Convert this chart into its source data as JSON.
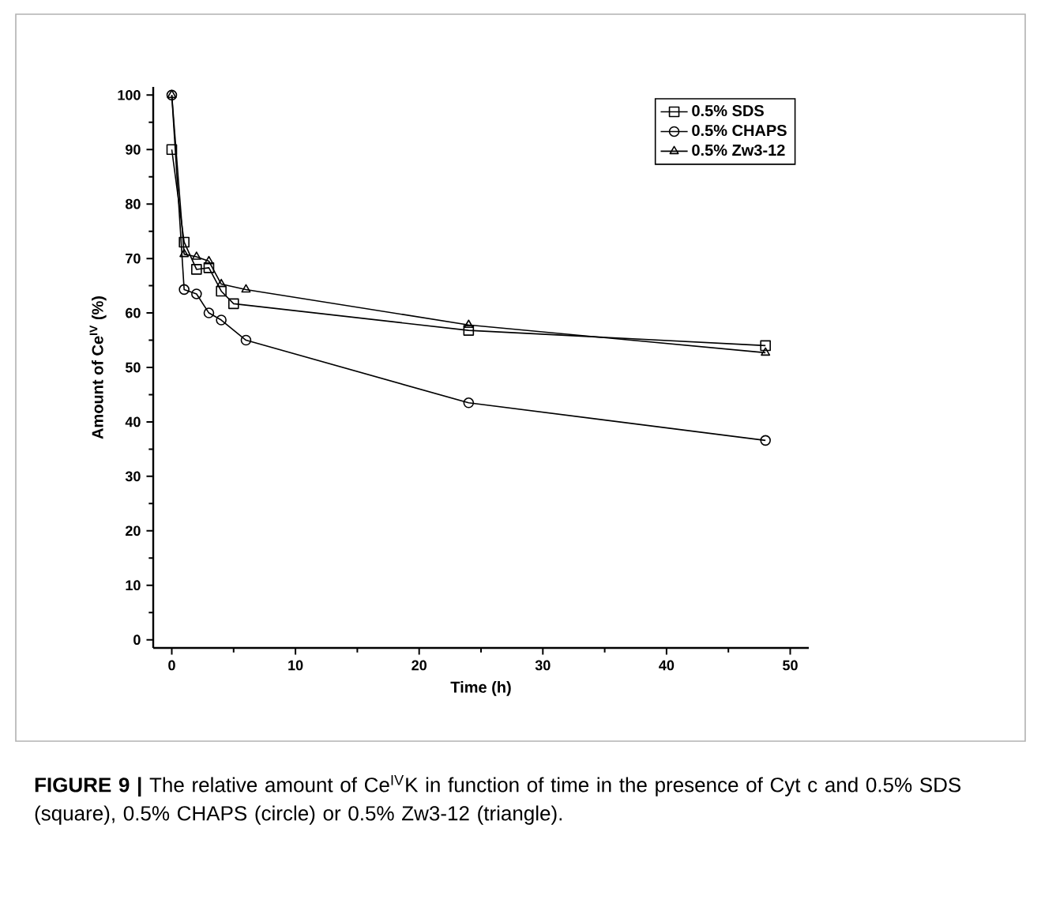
{
  "chart_data": {
    "type": "line",
    "xlabel": "Time (h)",
    "ylabel": "Amount of Ce$^{IV}$ (%)",
    "xlim": [
      -1.5,
      51.5
    ],
    "xticks": [
      0,
      10,
      20,
      30,
      40,
      50
    ],
    "ylim": [
      -1.5,
      101.5
    ],
    "yticks": [
      0,
      10,
      20,
      30,
      40,
      50,
      60,
      70,
      80,
      90,
      100
    ],
    "legend": "top right",
    "line_style": "solid",
    "series": [
      {
        "name": "0.5% SDS",
        "color": "#000000",
        "marker": "square",
        "x": [
          0,
          1,
          2,
          3,
          4,
          5,
          24,
          48
        ],
        "values": [
          90,
          73,
          68,
          68.3,
          64,
          61.7,
          56.8,
          54
        ]
      },
      {
        "name": "0.5% CHAPS",
        "color": "#000000",
        "marker": "circle",
        "x": [
          0,
          1,
          2,
          3,
          4,
          6,
          24,
          48
        ],
        "values": [
          100,
          64.3,
          63.5,
          60,
          58.7,
          55,
          43.5,
          36.6
        ]
      },
      {
        "name": "0.5% Zw3-12",
        "color": "#000000",
        "marker": "triangle",
        "x": [
          0,
          1,
          2,
          3,
          4,
          6,
          24,
          48
        ],
        "values": [
          100,
          70.8,
          70.3,
          69.5,
          65.3,
          64.3,
          57.8,
          52.7
        ]
      }
    ],
    "annotations": [
      "**FIGURE 9 |** The relative amount of Ce$^{IV}$K in function of time in the presence of Cyt c and 0.5% SDS (square), 0.5% CHAPS (circle) or 0.5% Zw3-12 (triangle)."
    ]
  }
}
